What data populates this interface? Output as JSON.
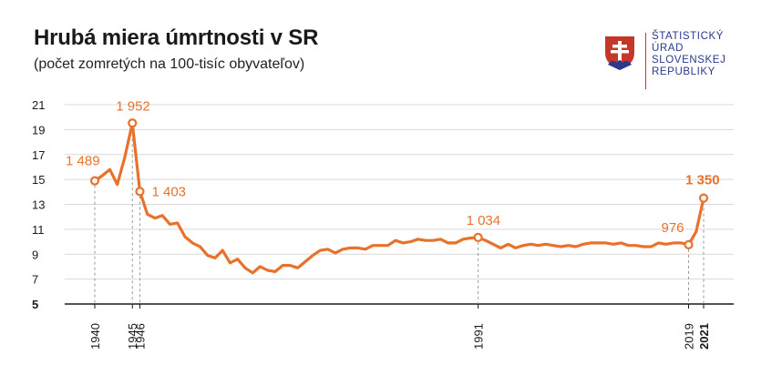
{
  "header": {
    "title": "Hrubá miera úmrtnosti v SR",
    "subtitle": "(počet zomretých na 100-tisíc obyvateľov)"
  },
  "logo": {
    "lines": [
      "ŠTATISTICKÝ",
      "ÚRAD",
      "SLOVENSKEJ",
      "REPUBLIKY"
    ],
    "icon": "slovak-coat-of-arms-icon",
    "colors": {
      "text": "#2a3a8c",
      "shield": "#c6372b",
      "cross": "#ffffff",
      "hills": "#2a3a8c"
    }
  },
  "colors": {
    "line": "#e8722c",
    "grid": "#d9d9d9",
    "axis": "#1a1a1a",
    "label": "#e8722c"
  },
  "chart_data": {
    "type": "line",
    "title": "Hrubá miera úmrtnosti v SR",
    "subtitle": "(počet zomretých na 100-tisíc obyvateľov)",
    "xlabel": "",
    "ylabel": "",
    "ylim": [
      5,
      21
    ],
    "yticks": [
      5,
      7,
      9,
      11,
      13,
      15,
      17,
      19,
      21
    ],
    "xlim": [
      1940,
      2021
    ],
    "xticks": [
      "1940",
      "1945",
      "1946",
      "1991",
      "2019",
      "2021"
    ],
    "grid": true,
    "series": [
      {
        "x": [
          1940,
          1941,
          1942,
          1943,
          1944,
          1945,
          1946,
          1947,
          1948,
          1949,
          1950,
          1951,
          1952,
          1953,
          1954,
          1955,
          1956,
          1957,
          1958,
          1959,
          1960,
          1961,
          1962,
          1963,
          1964,
          1965,
          1966,
          1967,
          1968,
          1969,
          1970,
          1971,
          1972,
          1973,
          1974,
          1975,
          1976,
          1977,
          1978,
          1979,
          1980,
          1981,
          1982,
          1983,
          1984,
          1985,
          1986,
          1987,
          1988,
          1989,
          1990,
          1991,
          1992,
          1993,
          1994,
          1995,
          1996,
          1997,
          1998,
          1999,
          2000,
          2001,
          2002,
          2003,
          2004,
          2005,
          2006,
          2007,
          2008,
          2009,
          2010,
          2011,
          2012,
          2013,
          2014,
          2015,
          2016,
          2017,
          2018,
          2019,
          2020,
          2021
        ],
        "values": [
          14.89,
          15.3,
          15.8,
          14.6,
          16.8,
          19.52,
          14.03,
          12.2,
          11.9,
          12.1,
          11.4,
          11.5,
          10.4,
          9.9,
          9.6,
          8.9,
          8.7,
          9.3,
          8.3,
          8.6,
          7.9,
          7.5,
          8.0,
          7.7,
          7.6,
          8.1,
          8.1,
          7.9,
          8.4,
          8.9,
          9.3,
          9.4,
          9.1,
          9.4,
          9.5,
          9.5,
          9.4,
          9.7,
          9.7,
          9.7,
          10.1,
          9.9,
          10.0,
          10.2,
          10.1,
          10.1,
          10.2,
          9.9,
          9.9,
          10.2,
          10.3,
          10.34,
          10.1,
          9.8,
          9.5,
          9.8,
          9.5,
          9.7,
          9.8,
          9.7,
          9.8,
          9.7,
          9.6,
          9.7,
          9.6,
          9.8,
          9.9,
          9.9,
          9.9,
          9.8,
          9.9,
          9.7,
          9.7,
          9.6,
          9.6,
          9.9,
          9.8,
          9.9,
          9.9,
          9.76,
          10.8,
          13.5
        ]
      }
    ],
    "annotations": [
      {
        "x": 1940,
        "y": 14.89,
        "label": "1 489",
        "bold": false
      },
      {
        "x": 1945,
        "y": 19.52,
        "label": "1 952",
        "bold": false
      },
      {
        "x": 1946,
        "y": 14.03,
        "label": "1 403",
        "bold": false
      },
      {
        "x": 1991,
        "y": 10.34,
        "label": "1 034",
        "bold": false
      },
      {
        "x": 2019,
        "y": 9.76,
        "label": "976",
        "bold": false
      },
      {
        "x": 2021,
        "y": 13.5,
        "label": "1 350",
        "bold": true
      }
    ]
  }
}
